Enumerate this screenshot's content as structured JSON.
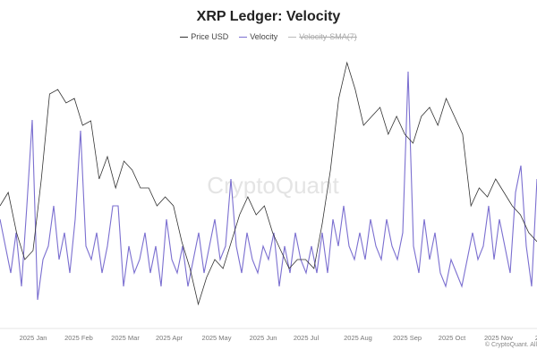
{
  "chart_data": {
    "type": "line",
    "title": "XRP Ledger: Velocity",
    "legend": [
      {
        "name": "Price USD",
        "color": "#333333",
        "visible": true
      },
      {
        "name": "Velocity",
        "color": "#7b6fd0",
        "visible": true
      },
      {
        "name": "Velocity-SMA(7)",
        "color": "#bbbbbb",
        "visible": false
      }
    ],
    "legend_position": "top-center",
    "x_ticks": [
      "2025 Jan",
      "2025 Feb",
      "2025 Mar",
      "2025 Apr",
      "2025 May",
      "2025 Jun",
      "2025 Jul",
      "2025 Aug",
      "2025 Sep",
      "2025 Oct",
      "2025 Nov",
      "2"
    ],
    "grid": false,
    "watermark": "CryptoQuant",
    "series": [
      {
        "name": "Price USD",
        "ylim": [
          1.8,
          3.6
        ],
        "values": [
          2.61,
          2.7,
          2.43,
          2.25,
          2.31,
          2.79,
          3.36,
          3.39,
          3.3,
          3.33,
          3.15,
          3.18,
          2.79,
          2.94,
          2.73,
          2.91,
          2.85,
          2.73,
          2.73,
          2.61,
          2.67,
          2.61,
          2.37,
          2.19,
          1.95,
          2.13,
          2.25,
          2.19,
          2.37,
          2.55,
          2.67,
          2.55,
          2.61,
          2.43,
          2.31,
          2.19,
          2.25,
          2.25,
          2.19,
          2.49,
          2.85,
          3.33,
          3.57,
          3.39,
          3.15,
          3.21,
          3.27,
          3.09,
          3.21,
          3.09,
          3.03,
          3.21,
          3.27,
          3.15,
          3.33,
          3.21,
          3.09,
          2.61,
          2.73,
          2.67,
          2.79,
          2.7,
          2.61,
          2.55,
          2.43,
          2.37
        ]
      },
      {
        "name": "Velocity",
        "ylim": [
          0,
          100
        ],
        "values": [
          40,
          30,
          20,
          35,
          15,
          45,
          77,
          10,
          25,
          30,
          45,
          25,
          35,
          20,
          40,
          73,
          30,
          25,
          35,
          20,
          30,
          45,
          45,
          15,
          30,
          20,
          25,
          35,
          20,
          30,
          15,
          40,
          25,
          20,
          30,
          15,
          25,
          35,
          20,
          30,
          40,
          25,
          30,
          55,
          30,
          20,
          35,
          25,
          20,
          30,
          25,
          35,
          15,
          30,
          20,
          35,
          25,
          20,
          30,
          20,
          35,
          20,
          40,
          30,
          45,
          30,
          25,
          35,
          25,
          40,
          30,
          25,
          40,
          30,
          25,
          35,
          95,
          30,
          20,
          40,
          25,
          35,
          20,
          15,
          25,
          20,
          15,
          25,
          35,
          25,
          30,
          45,
          25,
          40,
          30,
          20,
          50,
          60,
          30,
          15,
          55
        ]
      }
    ]
  },
  "footer": {
    "copyright": "© CryptoQuant. All"
  }
}
